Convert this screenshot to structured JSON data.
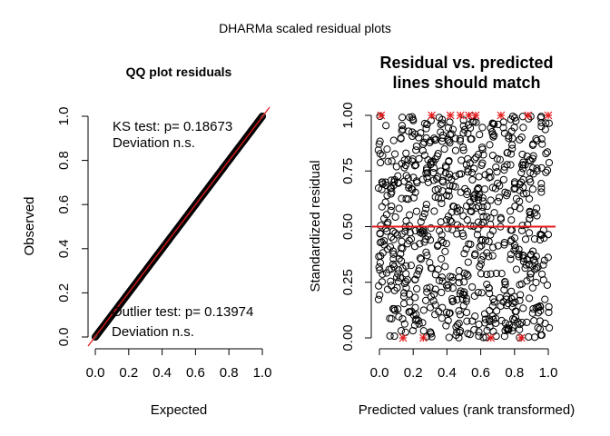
{
  "figure_title": "DHARMa scaled residual plots",
  "chart_data": [
    {
      "type": "scatter",
      "title": "QQ plot residuals",
      "xlabel": "Expected",
      "ylabel": "Observed",
      "xlim": [
        0,
        1
      ],
      "ylim": [
        0,
        1
      ],
      "x_ticks": [
        "0.0",
        "0.2",
        "0.4",
        "0.6",
        "0.8",
        "1.0"
      ],
      "y_ticks": [
        "0.0",
        "0.2",
        "0.4",
        "0.6",
        "0.8",
        "1.0"
      ],
      "reference_line": {
        "from": [
          0,
          0
        ],
        "to": [
          1,
          1
        ],
        "color": "#e41a1c"
      },
      "point_color": "#000000",
      "points": [
        [
          0.0,
          0.0
        ],
        [
          0.05,
          0.05
        ],
        [
          0.1,
          0.1
        ],
        [
          0.15,
          0.15
        ],
        [
          0.2,
          0.2
        ],
        [
          0.25,
          0.25
        ],
        [
          0.3,
          0.3
        ],
        [
          0.35,
          0.35
        ],
        [
          0.4,
          0.4
        ],
        [
          0.45,
          0.45
        ],
        [
          0.5,
          0.5
        ],
        [
          0.55,
          0.55
        ],
        [
          0.6,
          0.6
        ],
        [
          0.65,
          0.65
        ],
        [
          0.7,
          0.7
        ],
        [
          0.75,
          0.75
        ],
        [
          0.8,
          0.8
        ],
        [
          0.85,
          0.85
        ],
        [
          0.9,
          0.9
        ],
        [
          0.95,
          0.95
        ],
        [
          1.0,
          1.0
        ]
      ],
      "annotations": {
        "ks_test": "KS test: p= 0.18673",
        "ks_deviation": "Deviation  n.s.",
        "outlier_test": "Outlier test: p= 0.13974",
        "outlier_deviation": "Deviation  n.s."
      }
    },
    {
      "type": "scatter",
      "title_line1": "Residual vs. predicted",
      "title_line2": "lines should match",
      "xlabel": "Predicted values (rank transformed)",
      "ylabel": "Standardized residual",
      "xlim": [
        0,
        1
      ],
      "ylim": [
        0,
        1
      ],
      "x_ticks": [
        "0.0",
        "0.2",
        "0.4",
        "0.6",
        "0.8",
        "1.0"
      ],
      "y_ticks": [
        "0.00",
        "0.25",
        "0.50",
        "0.75",
        "1.00"
      ],
      "reference_lines": [
        0.5
      ],
      "reference_color": "#e41a1c",
      "point_color": "#000000",
      "outlier_color": "#e41a1c",
      "outliers": [
        [
          0.01,
          1.0
        ],
        [
          0.14,
          0.0
        ],
        [
          0.26,
          0.0
        ],
        [
          0.31,
          1.0
        ],
        [
          0.42,
          1.0
        ],
        [
          0.48,
          1.0
        ],
        [
          0.53,
          1.0
        ],
        [
          0.57,
          1.0
        ],
        [
          0.66,
          0.0
        ],
        [
          0.72,
          1.0
        ],
        [
          0.84,
          0.0
        ],
        [
          0.88,
          1.0
        ],
        [
          1.0,
          1.0
        ]
      ]
    }
  ]
}
